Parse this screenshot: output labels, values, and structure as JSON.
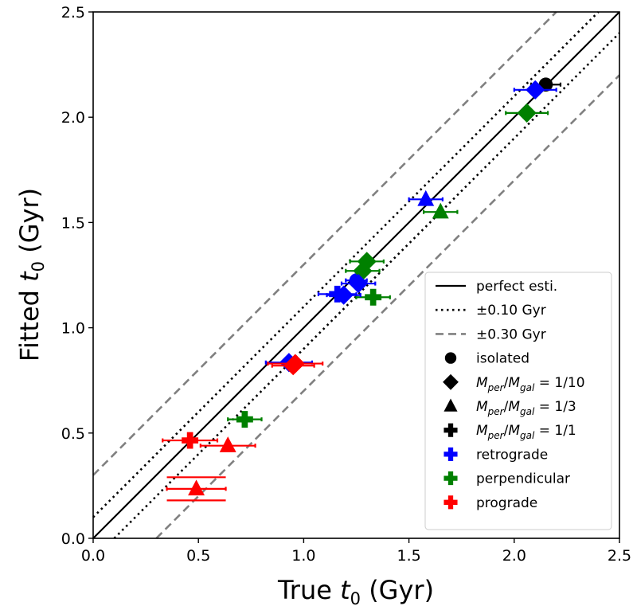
{
  "chart_data": {
    "type": "scatter",
    "xlabel": "True t0 (Gyr)",
    "ylabel": "Fitted t0 (Gyr)",
    "xlim": [
      0.0,
      2.5
    ],
    "ylim": [
      0.0,
      2.5
    ],
    "xticks": [
      "0.0",
      "0.5",
      "1.0",
      "1.5",
      "2.0",
      "2.5"
    ],
    "yticks": [
      "0.0",
      "0.5",
      "1.0",
      "1.5",
      "2.0",
      "2.5"
    ],
    "grid": false,
    "legend_position": "lower-right",
    "reference_lines": [
      {
        "name": "perfect esti.",
        "offsets": [
          0
        ],
        "style": "solid",
        "color": "#000000"
      },
      {
        "name": "±0.10 Gyr",
        "offsets": [
          0.1,
          -0.1
        ],
        "style": "dotted",
        "color": "#000000"
      },
      {
        "name": "±0.30 Gyr",
        "offsets": [
          0.3,
          -0.3
        ],
        "style": "dashed",
        "color": "#808080"
      }
    ],
    "marker_legend": [
      {
        "marker": "circle",
        "label": "isolated"
      },
      {
        "marker": "diamond",
        "label": "M_per/M_gal = 1/10"
      },
      {
        "marker": "triangle",
        "label": "M_per/M_gal = 1/3"
      },
      {
        "marker": "plus",
        "label": "M_per/M_gal = 1/1"
      }
    ],
    "color_legend": [
      {
        "label": "retrograde",
        "color": "#0000ff"
      },
      {
        "label": "perpendicular",
        "color": "#008000"
      },
      {
        "label": "prograde",
        "color": "#ff0000"
      }
    ],
    "points": [
      {
        "x": 2.15,
        "y": 2.155,
        "xerr": 0.07,
        "marker": "circle",
        "color": "#000000"
      },
      {
        "x": 1.25,
        "y": 1.225,
        "xerr": 0.05,
        "marker": "circle",
        "color": "#0000ff"
      },
      {
        "x": 2.1,
        "y": 2.13,
        "xerr": 0.1,
        "marker": "diamond",
        "color": "#0000ff"
      },
      {
        "x": 2.06,
        "y": 2.02,
        "xerr": 0.1,
        "marker": "diamond",
        "color": "#008000"
      },
      {
        "x": 1.58,
        "y": 1.61,
        "xerr": 0.08,
        "marker": "triangle",
        "color": "#0000ff"
      },
      {
        "x": 1.65,
        "y": 1.55,
        "xerr": 0.08,
        "marker": "triangle",
        "color": "#008000"
      },
      {
        "x": 1.3,
        "y": 1.315,
        "xerr": 0.08,
        "marker": "diamond",
        "color": "#008000"
      },
      {
        "x": 1.28,
        "y": 1.27,
        "xerr": 0.08,
        "marker": "diamond",
        "color": "#008000"
      },
      {
        "x": 1.33,
        "y": 1.145,
        "xerr": 0.08,
        "marker": "plus",
        "color": "#008000"
      },
      {
        "x": 1.26,
        "y": 1.21,
        "xerr": 0.08,
        "marker": "diamond",
        "color": "#0000ff"
      },
      {
        "x": 1.16,
        "y": 1.16,
        "xerr": 0.09,
        "marker": "plus",
        "color": "#0000ff"
      },
      {
        "x": 1.19,
        "y": 1.155,
        "xerr": 0.08,
        "marker": "diamond",
        "color": "#0000ff"
      },
      {
        "x": 0.93,
        "y": 0.835,
        "xerr": 0.11,
        "marker": "diamond",
        "color": "#0000ff"
      },
      {
        "x": 0.96,
        "y": 0.83,
        "xerr": 0.13,
        "marker": "diamond",
        "color": "#ff0000"
      },
      {
        "x": 0.95,
        "y": 0.82,
        "xerr": 0.1,
        "marker": "diamond",
        "color": "#ff0000"
      },
      {
        "x": 0.72,
        "y": 0.565,
        "xerr": 0.08,
        "marker": "plus",
        "color": "#008000"
      },
      {
        "x": 0.46,
        "y": 0.465,
        "xerr": 0.13,
        "marker": "plus",
        "color": "#ff0000"
      },
      {
        "x": 0.64,
        "y": 0.44,
        "xerr": 0.13,
        "marker": "triangle",
        "color": "#ff0000"
      },
      {
        "x": 0.49,
        "y": 0.235,
        "xerr": 0.14,
        "marker": "triangle",
        "color": "#ff0000",
        "yerr_bars": [
          0.29,
          0.18
        ]
      }
    ]
  }
}
